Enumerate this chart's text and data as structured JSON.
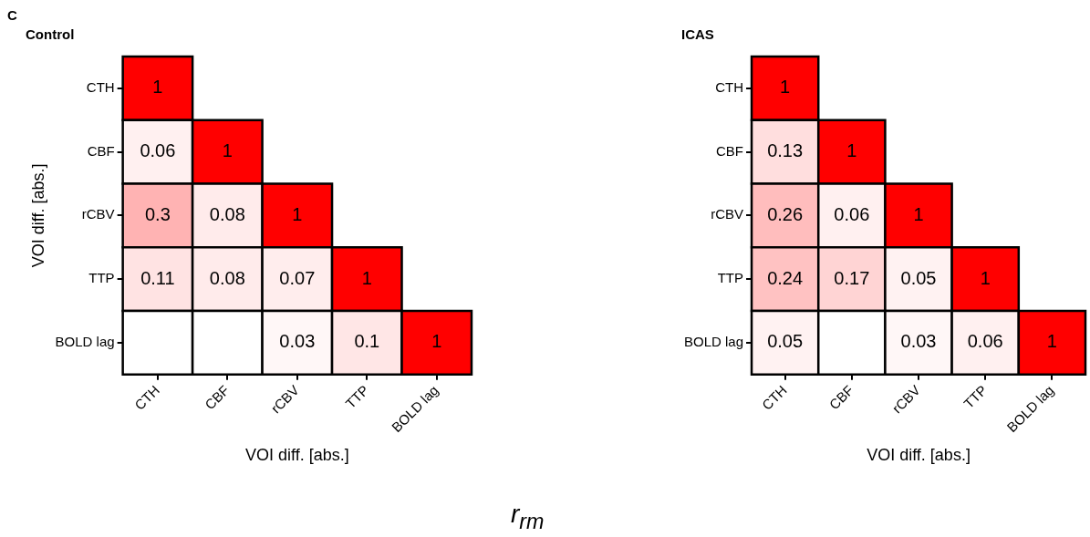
{
  "chart_data": [
    {
      "type": "heatmap",
      "title": "Control",
      "xlabel": "VOI diff. [abs.]",
      "ylabel": "VOI diff. [abs.]",
      "annotations": [
        "C",
        "r$_{rm}$"
      ],
      "data_labels": true,
      "categories": [
        "CTH",
        "CBF",
        "rCBV",
        "TTP",
        "BOLD lag"
      ],
      "y_categories": [
        "CTH",
        "CBF",
        "rCBV",
        "TTP",
        "BOLD lag"
      ],
      "cells": [
        [
          1,
          null,
          null,
          null,
          null
        ],
        [
          0.06,
          1,
          null,
          null,
          null
        ],
        [
          0.3,
          0.08,
          1,
          null,
          null
        ],
        [
          0.11,
          0.08,
          0.07,
          1,
          null
        ],
        [
          null,
          null,
          0.03,
          0.1,
          1
        ]
      ]
    },
    {
      "type": "heatmap",
      "title": "ICAS",
      "xlabel": "VOI diff. [abs.]",
      "data_labels": true,
      "categories": [
        "CTH",
        "CBF",
        "rCBV",
        "TTP",
        "BOLD lag"
      ],
      "y_categories": [
        "CTH",
        "CBF",
        "rCBV",
        "TTP",
        "BOLD lag"
      ],
      "cells": [
        [
          1,
          null,
          null,
          null,
          null
        ],
        [
          0.13,
          1,
          null,
          null,
          null
        ],
        [
          0.26,
          0.06,
          1,
          null,
          null
        ],
        [
          0.24,
          0.17,
          0.05,
          1,
          null
        ],
        [
          0.05,
          null,
          0.03,
          0.06,
          1
        ]
      ]
    }
  ]
}
